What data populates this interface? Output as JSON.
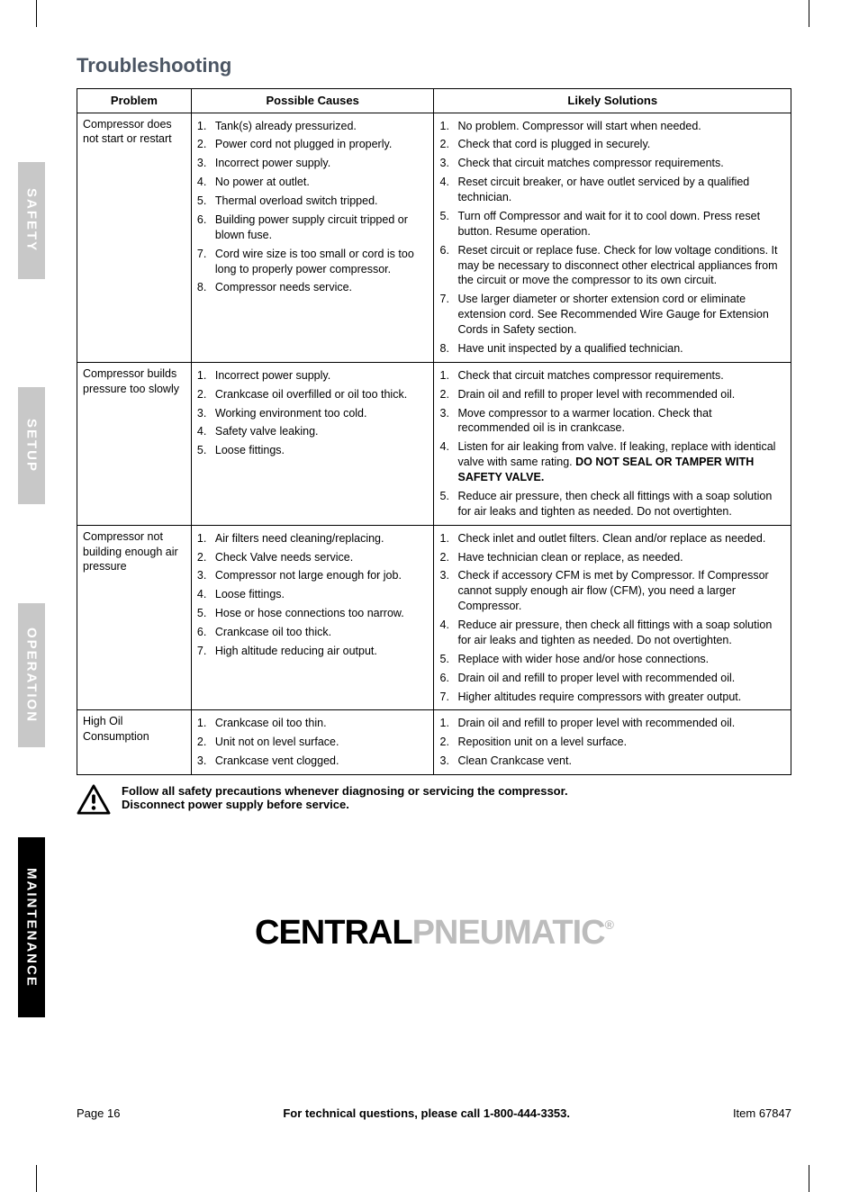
{
  "title": "Troubleshooting",
  "side_tabs": {
    "safety": {
      "label": "SAFETY",
      "bg": "#c8c8c8",
      "fg": "#ffffff"
    },
    "setup": {
      "label": "SETUP",
      "bg": "#c8c8c8",
      "fg": "#ffffff"
    },
    "operation": {
      "label": "OPERATION",
      "bg": "#c8c8c8",
      "fg": "#ffffff"
    },
    "maintenance": {
      "label": "MAINTENANCE",
      "bg": "#000000",
      "fg": "#ffffff"
    }
  },
  "table": {
    "headers": {
      "problem": "Problem",
      "causes": "Possible Causes",
      "solutions": "Likely Solutions"
    },
    "rows": [
      {
        "problem": "Compressor does not start or restart",
        "causes": [
          "Tank(s) already pressurized.",
          "Power cord not plugged in properly.",
          "Incorrect power supply.",
          "No power at outlet.",
          "Thermal overload switch tripped.",
          "Building power supply circuit tripped or blown fuse.",
          "Cord wire size is too small or cord is too long to properly power compressor.",
          "Compressor needs service."
        ],
        "solutions": [
          "No problem.  Compressor will start when needed.",
          "Check that cord is plugged in securely.",
          "Check that circuit matches compressor requirements.",
          "Reset circuit breaker, or have outlet serviced by a qualified technician.",
          "Turn off Compressor and wait for it to cool down. Press reset button.  Resume operation.",
          "Reset circuit or replace fuse.  Check for low voltage conditions.  It may be necessary to disconnect other electrical appliances from the circuit or move the compressor to its own circuit.",
          "Use larger diameter or shorter extension cord or eliminate extension cord.  See Recommended Wire Gauge for Extension Cords in Safety section.",
          "Have unit inspected by a qualified technician."
        ]
      },
      {
        "problem": "Compressor builds pressure too slowly",
        "causes": [
          "Incorrect power supply.",
          "Crankcase oil overfilled or oil too thick.",
          "Working environment too cold.",
          "Safety valve leaking.",
          "Loose fittings."
        ],
        "solutions": [
          "Check that circuit matches compressor requirements.",
          "Drain oil and refill to proper level with recommended oil.",
          "Move compressor to a warmer location. Check that recommended oil is in crankcase.",
          "Listen for air leaking from valve. If leaking, replace with identical valve with same rating. <b>DO NOT SEAL OR TAMPER WITH SAFETY VALVE.</b>",
          "Reduce air pressure, then check all fittings with a soap solution for air leaks and tighten as needed. Do not overtighten."
        ]
      },
      {
        "problem": "Compressor not building enough air pressure",
        "causes": [
          "Air filters need cleaning/replacing.",
          "Check Valve needs service.",
          "Compressor not large enough for job.",
          "Loose fittings.",
          "Hose or hose connections too narrow.",
          "Crankcase oil too thick.",
          "High altitude reducing air output."
        ],
        "solutions": [
          "Check inlet and outlet filters. Clean and/or replace as needed.",
          "Have technician clean or replace, as needed.",
          "Check if accessory CFM is met by Compressor. If Compressor cannot supply enough air flow (CFM), you need a larger Compressor.",
          "Reduce air pressure, then check all fittings with a soap solution for air leaks and tighten as needed. Do not overtighten.",
          "Replace with wider hose and/or hose connections.",
          "Drain oil and refill to proper level with recommended oil.",
          "Higher altitudes require compressors with greater output."
        ]
      },
      {
        "problem": "High Oil Consumption",
        "causes": [
          "Crankcase oil too thin.",
          "Unit not on level surface.",
          "Crankcase vent clogged."
        ],
        "solutions": [
          "Drain oil and refill to proper level with recommended oil.",
          "Reposition unit on a level surface.",
          "Clean Crankcase vent."
        ]
      }
    ]
  },
  "warning": {
    "line1": "Follow all safety precautions whenever diagnosing or servicing the compressor.",
    "line2": "Disconnect power supply before service."
  },
  "brand": {
    "part1": "CENTRAL",
    "part2": "PNEUMATIC",
    "reg": "®"
  },
  "footer": {
    "left": "Page 16",
    "center": "For technical questions, please call 1-800-444-3353.",
    "right": "Item 67847"
  }
}
